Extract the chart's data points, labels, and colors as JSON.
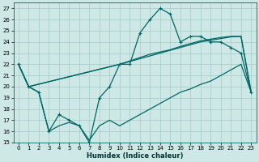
{
  "xlabel": "Humidex (Indice chaleur)",
  "xlim": [
    -0.5,
    23.5
  ],
  "ylim": [
    15,
    27.5
  ],
  "yticks": [
    15,
    16,
    17,
    18,
    19,
    20,
    21,
    22,
    23,
    24,
    25,
    26,
    27
  ],
  "xticks": [
    0,
    1,
    2,
    3,
    4,
    5,
    6,
    7,
    8,
    9,
    10,
    11,
    12,
    13,
    14,
    15,
    16,
    17,
    18,
    19,
    20,
    21,
    22,
    23
  ],
  "bg_color": "#cde8e5",
  "grid_color": "#aacfcc",
  "line_color": "#006666",
  "series_main": {
    "x": [
      0,
      1,
      2,
      3,
      4,
      5,
      6,
      7,
      8,
      9,
      10,
      11,
      12,
      13,
      14,
      15,
      16,
      17,
      18,
      19,
      20,
      21,
      22,
      23
    ],
    "y": [
      22,
      20,
      19.5,
      16,
      17.5,
      17,
      16.5,
      15,
      19,
      20,
      22,
      22,
      24.8,
      26,
      27,
      26.5,
      24,
      24.5,
      24.5,
      24,
      24,
      23.5,
      23,
      19.5
    ]
  },
  "series_upper_line": {
    "x": [
      0,
      1,
      10,
      11,
      12,
      13,
      14,
      15,
      16,
      17,
      18,
      19,
      20,
      21,
      22,
      23
    ],
    "y": [
      22,
      20,
      22,
      22.25,
      22.5,
      22.75,
      23.0,
      23.25,
      23.5,
      23.75,
      24.0,
      24.15,
      24.3,
      24.45,
      24.5,
      19.5
    ]
  },
  "series_upper_line2": {
    "x": [
      0,
      1,
      10,
      11,
      12,
      13,
      14,
      15,
      16,
      17,
      18,
      19,
      20,
      21,
      22,
      23
    ],
    "y": [
      22,
      20,
      22,
      22.3,
      22.6,
      22.9,
      23.1,
      23.3,
      23.6,
      23.85,
      24.1,
      24.25,
      24.4,
      24.5,
      24.5,
      19.5
    ]
  },
  "series_lower_line": {
    "x": [
      0,
      1,
      2,
      3,
      4,
      5,
      6,
      7,
      8,
      9,
      10,
      11,
      12,
      13,
      14,
      15,
      16,
      17,
      18,
      19,
      20,
      21,
      22,
      23
    ],
    "y": [
      22,
      20,
      19.5,
      16,
      16.5,
      16.8,
      16.5,
      15.2,
      16.5,
      17.0,
      16.5,
      17.0,
      17.5,
      18.0,
      18.5,
      19.0,
      19.5,
      19.8,
      20.2,
      20.5,
      21.0,
      21.5,
      22.0,
      19.5
    ]
  }
}
